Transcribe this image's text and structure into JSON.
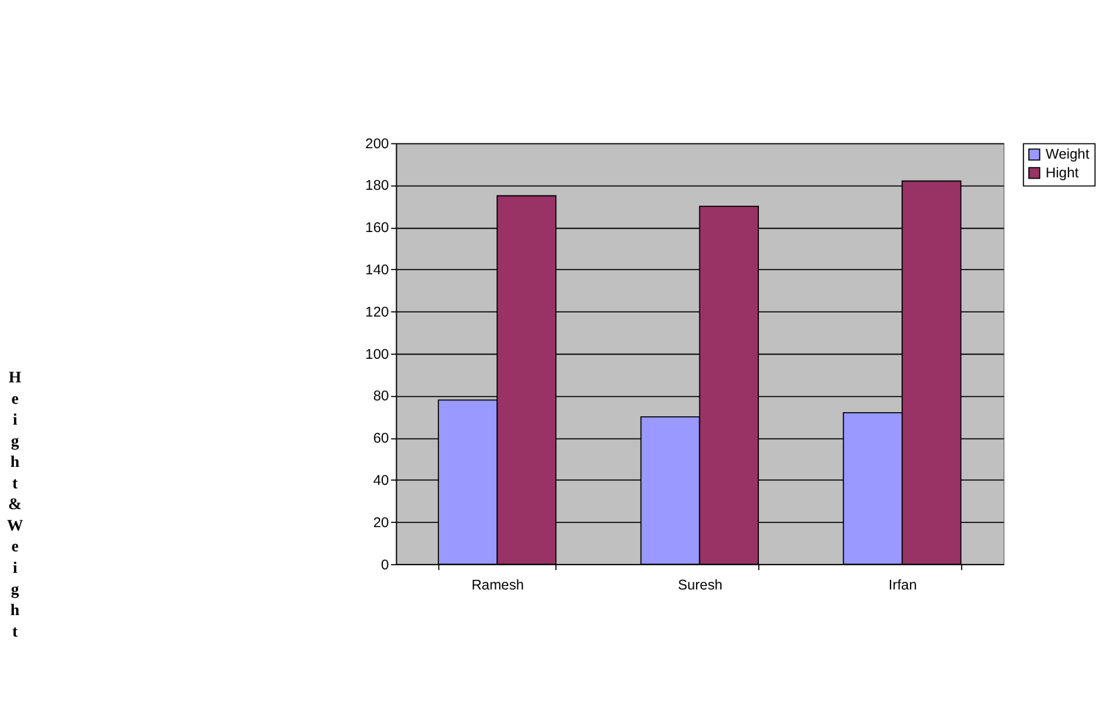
{
  "chart_data": {
    "type": "bar",
    "ylabel": "Height & Weight",
    "categories": [
      "Ramesh",
      "Suresh",
      "Irfan"
    ],
    "series": [
      {
        "name": "Weight",
        "color": "#9999ff",
        "values": [
          78,
          70,
          72
        ]
      },
      {
        "name": "Hight",
        "color": "#993366",
        "values": [
          175,
          170,
          182
        ]
      }
    ],
    "ylim": [
      0,
      200
    ],
    "yticks": [
      0,
      20,
      40,
      60,
      80,
      100,
      120,
      140,
      160,
      180,
      200
    ],
    "grid": "y",
    "legend": "right"
  }
}
